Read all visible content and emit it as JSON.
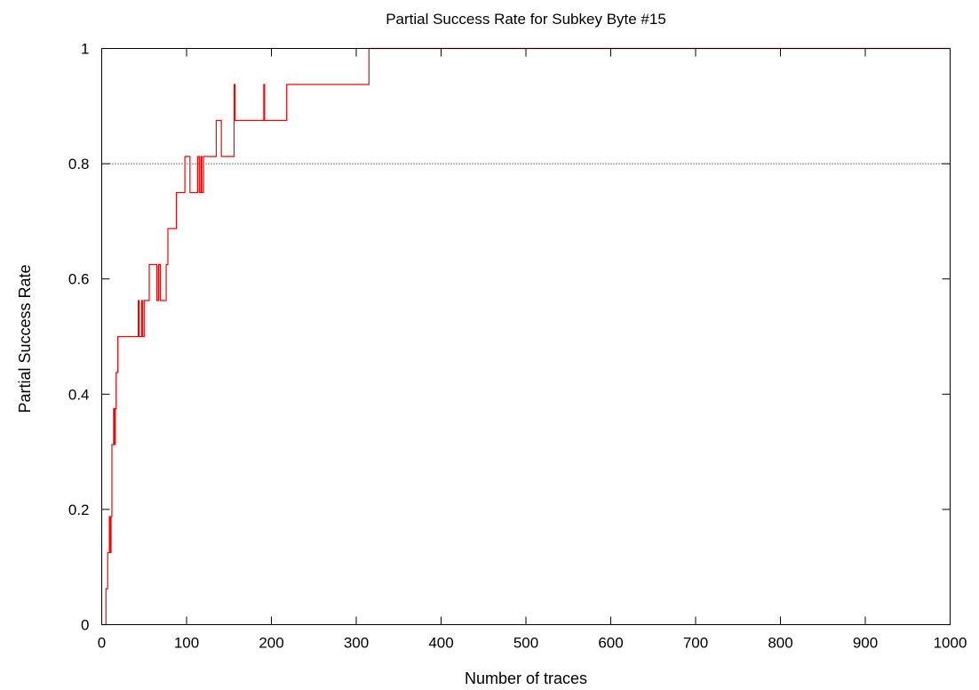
{
  "chart_data": {
    "type": "line",
    "title": "Partial Success Rate for Subkey Byte #15",
    "xlabel": "Number of traces",
    "ylabel": "Partial Success Rate",
    "xlim": [
      0,
      1000
    ],
    "ylim": [
      0,
      1
    ],
    "x_ticks": [
      "0",
      "100",
      "200",
      "300",
      "400",
      "500",
      "600",
      "700",
      "800",
      "900",
      "1000"
    ],
    "y_ticks": [
      "0",
      "0.2",
      "0.4",
      "0.6",
      "0.8",
      "1"
    ],
    "grid": false,
    "legend": "none",
    "reference_line": {
      "y": 0.8,
      "style": "dotted",
      "color": "#000000"
    },
    "series": [
      {
        "color": "#ff0000",
        "points": [
          [
            1,
            0
          ],
          [
            5,
            0
          ],
          [
            5,
            0.0625
          ],
          [
            7,
            0.0625
          ],
          [
            7,
            0.125
          ],
          [
            9,
            0.125
          ],
          [
            9,
            0.1875
          ],
          [
            10,
            0.1875
          ],
          [
            10,
            0.125
          ],
          [
            11,
            0.125
          ],
          [
            11,
            0.1875
          ],
          [
            12,
            0.1875
          ],
          [
            12,
            0.3125
          ],
          [
            14,
            0.3125
          ],
          [
            14,
            0.375
          ],
          [
            15,
            0.375
          ],
          [
            15,
            0.3125
          ],
          [
            16,
            0.3125
          ],
          [
            16,
            0.375
          ],
          [
            17,
            0.375
          ],
          [
            17,
            0.4375
          ],
          [
            19,
            0.4375
          ],
          [
            19,
            0.5
          ],
          [
            43,
            0.5
          ],
          [
            43,
            0.5625
          ],
          [
            44,
            0.5625
          ],
          [
            44,
            0.5
          ],
          [
            47,
            0.5
          ],
          [
            47,
            0.5625
          ],
          [
            48,
            0.5625
          ],
          [
            48,
            0.5
          ],
          [
            50,
            0.5
          ],
          [
            50,
            0.5625
          ],
          [
            56,
            0.5625
          ],
          [
            56,
            0.625
          ],
          [
            65,
            0.625
          ],
          [
            65,
            0.5625
          ],
          [
            67,
            0.5625
          ],
          [
            67,
            0.625
          ],
          [
            69,
            0.625
          ],
          [
            69,
            0.5625
          ],
          [
            76,
            0.5625
          ],
          [
            76,
            0.625
          ],
          [
            78,
            0.625
          ],
          [
            78,
            0.6875
          ],
          [
            88,
            0.6875
          ],
          [
            88,
            0.75
          ],
          [
            98,
            0.75
          ],
          [
            98,
            0.8125
          ],
          [
            104,
            0.8125
          ],
          [
            104,
            0.75
          ],
          [
            113,
            0.75
          ],
          [
            113,
            0.8125
          ],
          [
            115,
            0.8125
          ],
          [
            115,
            0.75
          ],
          [
            117,
            0.75
          ],
          [
            117,
            0.8125
          ],
          [
            118,
            0.8125
          ],
          [
            118,
            0.75
          ],
          [
            120,
            0.75
          ],
          [
            120,
            0.8125
          ],
          [
            135,
            0.8125
          ],
          [
            135,
            0.875
          ],
          [
            141,
            0.875
          ],
          [
            141,
            0.8125
          ],
          [
            156,
            0.8125
          ],
          [
            156,
            0.9375
          ],
          [
            157,
            0.9375
          ],
          [
            157,
            0.875
          ],
          [
            191,
            0.875
          ],
          [
            191,
            0.9375
          ],
          [
            192,
            0.9375
          ],
          [
            192,
            0.875
          ],
          [
            218,
            0.875
          ],
          [
            218,
            0.9375
          ],
          [
            315,
            0.9375
          ],
          [
            315,
            1
          ],
          [
            1000,
            1
          ]
        ]
      }
    ]
  }
}
